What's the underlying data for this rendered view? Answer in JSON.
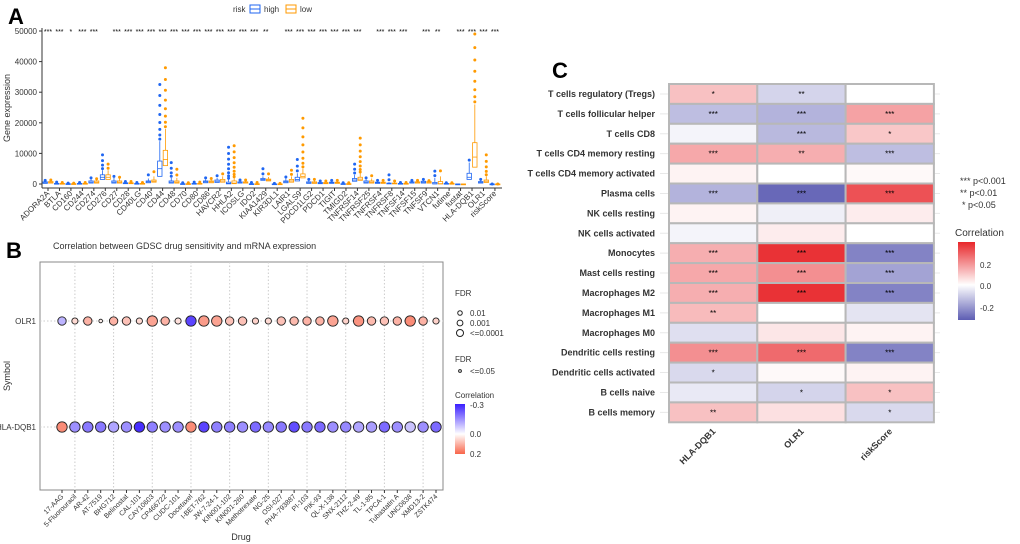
{
  "panel_labels": {
    "a": "A",
    "b": "B",
    "c": "C"
  },
  "chart_data": [
    {
      "type": "boxplot",
      "ylabel": "Gene expression",
      "ylim": [
        0,
        50000
      ],
      "yticks": [
        "0",
        "10000",
        "20000",
        "30000",
        "40000",
        "50000"
      ],
      "legend": {
        "title": "risk",
        "placement": "top",
        "groups": [
          "high",
          "low"
        ]
      },
      "colors": {
        "high": "#1f66f2",
        "low": "#ff9a00"
      },
      "categories": [
        "ADORA2A",
        "BTLA",
        "CD160",
        "CD244",
        "CD274",
        "CD276",
        "CD27",
        "CD28",
        "CD40LG",
        "CD40",
        "CD44",
        "CD48",
        "CD70",
        "CD80",
        "CD86",
        "HAVCR2",
        "HHLA2",
        "ICOSLG",
        "IDO2",
        "KIAA1429",
        "KIR3DL1",
        "LAIR1",
        "LGALS9",
        "PDCD1LG2",
        "PDCD1",
        "TIGIT",
        "TMIGD2",
        "TNFRSF14",
        "TNFRSF25",
        "TNFRSF4",
        "TNFRSF8",
        "TNFSF14",
        "TNFSF15",
        "TNFSF9",
        "VTCN1",
        "futime",
        "fustat",
        "HLA-DQB1",
        "OLR1",
        "riskScore"
      ],
      "significance": [
        "***",
        "***",
        "*",
        "***",
        "***",
        "",
        "***",
        "***",
        "***",
        "***",
        "***",
        "***",
        "***",
        "***",
        "***",
        "***",
        "***",
        "***",
        "***",
        "**",
        "",
        "***",
        "***",
        "***",
        "***",
        "***",
        "***",
        "***",
        "",
        "***",
        "***",
        "***",
        "",
        "***",
        "**",
        "",
        "***",
        "***",
        "***",
        "***"
      ],
      "box_stats_note": "q1, median, q3, upper whisker, max outlier",
      "high": [
        [
          200,
          400,
          700,
          1000,
          1200
        ],
        [
          50,
          100,
          200,
          400,
          600
        ],
        [
          30,
          60,
          100,
          200,
          300
        ],
        [
          50,
          100,
          200,
          400,
          500
        ],
        [
          300,
          600,
          1000,
          1800,
          2000
        ],
        [
          1500,
          2200,
          3000,
          4500,
          9500
        ],
        [
          300,
          600,
          1000,
          2000,
          2500
        ],
        [
          100,
          200,
          400,
          600,
          800
        ],
        [
          50,
          100,
          200,
          300,
          500
        ],
        [
          400,
          700,
          1000,
          1800,
          3000
        ],
        [
          2500,
          5000,
          7500,
          14000,
          32500
        ],
        [
          300,
          600,
          1000,
          2000,
          7000
        ],
        [
          20,
          50,
          100,
          200,
          400
        ],
        [
          50,
          100,
          200,
          400,
          600
        ],
        [
          400,
          700,
          1000,
          1500,
          2000
        ],
        [
          500,
          900,
          1300,
          2000,
          2700
        ],
        [
          50,
          200,
          600,
          1500,
          12000
        ],
        [
          300,
          500,
          700,
          1000,
          1300
        ],
        [
          20,
          40,
          80,
          200,
          500
        ],
        [
          1200,
          1500,
          1800,
          2500,
          5000
        ],
        [
          10,
          20,
          40,
          80,
          200
        ],
        [
          400,
          700,
          1000,
          1800,
          2300
        ],
        [
          1000,
          1500,
          2200,
          3500,
          8000
        ],
        [
          200,
          400,
          700,
          1200,
          1500
        ],
        [
          100,
          300,
          500,
          800,
          1000
        ],
        [
          200,
          400,
          600,
          1000,
          1200
        ],
        [
          30,
          60,
          100,
          200,
          400
        ],
        [
          900,
          1300,
          1800,
          3000,
          6500
        ],
        [
          300,
          600,
          1000,
          1500,
          2000
        ],
        [
          200,
          400,
          600,
          900,
          1200
        ],
        [
          50,
          150,
          300,
          600,
          3000
        ],
        [
          50,
          100,
          200,
          300,
          500
        ],
        [
          300,
          500,
          700,
          1000,
          1200
        ],
        [
          300,
          600,
          900,
          1300,
          1500
        ],
        [
          20,
          100,
          500,
          2000,
          4200
        ],
        [
          50,
          100,
          200,
          300,
          400
        ],
        [
          0,
          0,
          1,
          1,
          1
        ],
        [
          1500,
          2200,
          3500,
          7000,
          7800
        ],
        [
          300,
          500,
          800,
          1200,
          1500
        ],
        [
          0,
          0,
          1,
          1,
          2
        ]
      ],
      "low": [
        [
          300,
          500,
          800,
          1100,
          1300
        ],
        [
          50,
          100,
          200,
          400,
          500
        ],
        [
          30,
          60,
          100,
          200,
          300
        ],
        [
          50,
          100,
          200,
          400,
          500
        ],
        [
          300,
          600,
          1000,
          1500,
          1700
        ],
        [
          1500,
          2200,
          3000,
          4500,
          6500
        ],
        [
          300,
          600,
          1000,
          1800,
          2200
        ],
        [
          100,
          200,
          400,
          600,
          800
        ],
        [
          50,
          100,
          200,
          300,
          500
        ],
        [
          600,
          900,
          1300,
          2500,
          4000
        ],
        [
          6000,
          8000,
          11000,
          18000,
          38000
        ],
        [
          300,
          600,
          1000,
          2000,
          4800
        ],
        [
          20,
          50,
          100,
          200,
          400
        ],
        [
          50,
          100,
          200,
          400,
          600
        ],
        [
          400,
          700,
          1000,
          1500,
          1800
        ],
        [
          600,
          1000,
          1500,
          2500,
          3300
        ],
        [
          100,
          300,
          1000,
          2000,
          12500
        ],
        [
          300,
          500,
          700,
          1000,
          1300
        ],
        [
          20,
          40,
          80,
          200,
          500
        ],
        [
          1000,
          1300,
          1600,
          2300,
          3300
        ],
        [
          10,
          20,
          40,
          80,
          200
        ],
        [
          600,
          1000,
          1500,
          2500,
          4500
        ],
        [
          2000,
          2500,
          3300,
          5000,
          21500
        ],
        [
          200,
          400,
          700,
          1200,
          1500
        ],
        [
          100,
          300,
          500,
          800,
          1000
        ],
        [
          200,
          400,
          600,
          1000,
          1200
        ],
        [
          30,
          60,
          100,
          200,
          400
        ],
        [
          1200,
          1600,
          2200,
          3500,
          15000
        ],
        [
          300,
          600,
          1000,
          1800,
          2700
        ],
        [
          200,
          400,
          600,
          900,
          1200
        ],
        [
          50,
          150,
          300,
          600,
          1000
        ],
        [
          50,
          100,
          200,
          300,
          500
        ],
        [
          300,
          500,
          700,
          1000,
          1200
        ],
        [
          300,
          500,
          800,
          1000,
          1100
        ],
        [
          20,
          100,
          800,
          2500,
          4300
        ],
        [
          50,
          100,
          200,
          300,
          400
        ],
        [
          0,
          0,
          1,
          1,
          1
        ],
        [
          5500,
          8800,
          13500,
          26000,
          49000
        ],
        [
          500,
          900,
          1300,
          2500,
          9500
        ],
        [
          0,
          0,
          1,
          1,
          2
        ]
      ]
    },
    {
      "type": "bubble",
      "title": "Correlation between GDSC drug sensitivity and mRNA expression",
      "xlabel": "Drug",
      "ylabel": "Symbol",
      "rows": [
        "OLR1",
        "HLA-DQB1"
      ],
      "drugs": [
        "17-AAG",
        "5-Fluorouracil",
        "AR-42",
        "AT-7519",
        "BHG712",
        "Belinostat",
        "CAL-101",
        "CAY10603",
        "CP466722",
        "CUDC-101",
        "Docetaxel",
        "I-BET-762",
        "JW-7-24-1",
        "KIN001-102",
        "KIN001-260",
        "Methotrexate",
        "NG-25",
        "OSI-027",
        "PHA-793887",
        "PI-103",
        "PIK-93",
        "QL-X-138",
        "SNX-2112",
        "THZ-2-49",
        "TL-1-85",
        "TPCA-1",
        "Tubastatin A",
        "UNC0638",
        "XMD13-2",
        "ZSTK474"
      ],
      "correlation": [
        [
          -0.1,
          0.05,
          0.1,
          0.02,
          0.1,
          0.08,
          0.05,
          0.12,
          0.1,
          0.04,
          -0.25,
          0.13,
          0.12,
          0.08,
          0.08,
          0.06,
          0.05,
          0.08,
          0.09,
          0.1,
          0.1,
          0.12,
          0.06,
          0.14,
          0.09,
          0.08,
          0.1,
          0.15,
          0.1,
          0.06
        ],
        [
          0.15,
          -0.15,
          -0.18,
          -0.18,
          -0.12,
          -0.15,
          -0.28,
          -0.17,
          -0.15,
          -0.15,
          0.15,
          -0.25,
          -0.17,
          -0.17,
          -0.15,
          -0.2,
          -0.16,
          -0.18,
          -0.24,
          -0.18,
          -0.2,
          -0.15,
          -0.16,
          -0.12,
          -0.13,
          -0.2,
          -0.15,
          -0.08,
          -0.15,
          -0.2
        ]
      ],
      "fdr": [
        [
          0.001,
          0.01,
          0.001,
          0.05,
          0.001,
          0.001,
          0.01,
          0.0001,
          0.001,
          0.01,
          0.0001,
          0.0001,
          0.0001,
          0.001,
          0.001,
          0.01,
          0.01,
          0.001,
          0.001,
          0.001,
          0.001,
          0.0001,
          0.01,
          0.0001,
          0.001,
          0.001,
          0.001,
          0.0001,
          0.001,
          0.01
        ],
        [
          0.0001,
          0.0001,
          0.0001,
          0.0001,
          0.0001,
          0.0001,
          0.0001,
          0.0001,
          0.0001,
          0.0001,
          0.0001,
          0.0001,
          0.0001,
          0.0001,
          0.0001,
          0.0001,
          0.0001,
          0.0001,
          0.0001,
          0.0001,
          0.0001,
          0.0001,
          0.0001,
          0.0001,
          0.0001,
          0.0001,
          0.0001,
          0.0001,
          0.0001,
          0.0001
        ]
      ],
      "legend_fdr": {
        "title": "FDR",
        "labels": [
          "0.01",
          "0.001",
          "<=0.0001"
        ]
      },
      "legend_fdr2": {
        "title": "FDR",
        "labels": [
          "<=0.05"
        ]
      },
      "legend_corr": {
        "title": "Correlation",
        "ticks": [
          "-0.3",
          "0.0",
          "0.2"
        ],
        "range": [
          -0.3,
          0.2
        ]
      },
      "colors": {
        "negative": "#3a1fff",
        "zero": "#ffffff",
        "positive": "#f8654a"
      }
    },
    {
      "type": "heatmap",
      "rows": [
        "T cells regulatory (Tregs)",
        "T cells follicular helper",
        "T cells CD8",
        "T cells CD4 memory resting",
        "T cells CD4 memory activated",
        "Plasma cells",
        "NK cells resting",
        "NK cells activated",
        "Monocytes",
        "Mast cells resting",
        "Macrophages M2",
        "Macrophages M1",
        "Macrophages M0",
        "Dendritic cells resting",
        "Dendritic cells activated",
        "B cells naive",
        "B cells memory"
      ],
      "columns": [
        "HLA-DQB1",
        "OLR1",
        "riskScore"
      ],
      "values": [
        [
          0.1,
          -0.08,
          0.0
        ],
        [
          -0.12,
          -0.14,
          0.15
        ],
        [
          -0.02,
          -0.13,
          0.09
        ],
        [
          0.14,
          0.13,
          -0.12
        ],
        [
          0.02,
          0.0,
          0.01
        ],
        [
          -0.14,
          -0.28,
          0.28
        ],
        [
          0.02,
          -0.03,
          0.03
        ],
        [
          -0.02,
          0.03,
          0.0
        ],
        [
          0.13,
          0.33,
          -0.23
        ],
        [
          0.14,
          0.18,
          -0.17
        ],
        [
          0.13,
          0.33,
          -0.23
        ],
        [
          0.11,
          0.0,
          -0.05
        ],
        [
          -0.06,
          0.04,
          0.02
        ],
        [
          0.18,
          0.24,
          -0.23
        ],
        [
          -0.07,
          0.01,
          0.02
        ],
        [
          -0.04,
          -0.08,
          0.1
        ],
        [
          0.1,
          0.05,
          -0.07
        ]
      ],
      "stars": [
        [
          "*",
          "**",
          ""
        ],
        [
          "***",
          "***",
          "***"
        ],
        [
          "",
          "***",
          "*"
        ],
        [
          "***",
          "**",
          "***"
        ],
        [
          "",
          "",
          ""
        ],
        [
          "***",
          "***",
          "***"
        ],
        [
          "",
          "",
          ""
        ],
        [
          "",
          "",
          ""
        ],
        [
          "***",
          "***",
          "***"
        ],
        [
          "***",
          "***",
          "***"
        ],
        [
          "***",
          "***",
          "***"
        ],
        [
          "**",
          "",
          ""
        ],
        [
          "",
          "",
          ""
        ],
        [
          "***",
          "***",
          "***"
        ],
        [
          "*",
          "",
          ""
        ],
        [
          "",
          "*",
          "*"
        ],
        [
          "**",
          "",
          "*"
        ]
      ],
      "legend_sig": [
        "*** p<0.001",
        "**  p<0.01",
        "*  p<0.05"
      ],
      "legend_corr": {
        "title": "Correlation",
        "ticks": [
          "0.2",
          "0.0",
          "-0.2"
        ]
      },
      "colors": {
        "negative": "#5d5db3",
        "zero": "#ffffff",
        "positive": "#e8262a"
      }
    }
  ]
}
